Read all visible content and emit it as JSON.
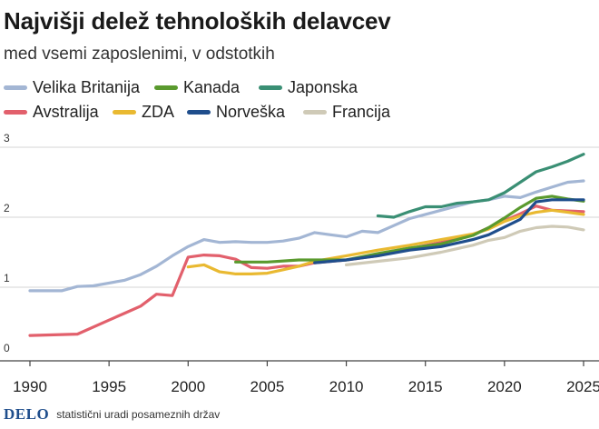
{
  "header": {
    "title": "Najvišji delež tehnoloških delavcev",
    "subtitle": "med vsemi zaposlenimi, v odstotkih"
  },
  "footer": {
    "logo": "DELO",
    "source": "statistični uradi posameznih držav"
  },
  "colors": {
    "Velika Britanija": "#a3b6d4",
    "Kanada": "#5a9a2e",
    "Japonska": "#3a8f74",
    "Avstralija": "#e2606c",
    "ZDA": "#e9b931",
    "Norveška": "#1f4e8c",
    "Francija": "#cfcab7"
  },
  "chart_data": {
    "type": "line",
    "title": "Najvišji delež tehnoloških delavcev",
    "subtitle": "med vsemi zaposlenimi, v odstotkih",
    "xlabel": "",
    "ylabel": "",
    "xlim": [
      1989,
      2025.5
    ],
    "ylim": [
      0,
      3.1
    ],
    "x_ticks": [
      1990,
      1995,
      2000,
      2005,
      2010,
      2015,
      2020,
      2025
    ],
    "y_ticks": [
      0,
      1,
      2,
      3
    ],
    "grid": "horizontal",
    "legend_position": "top",
    "series": [
      {
        "name": "Velika Britanija",
        "points": [
          [
            1990,
            0.95
          ],
          [
            1992,
            0.95
          ],
          [
            1993,
            1.01
          ],
          [
            1994,
            1.02
          ],
          [
            1995,
            1.06
          ],
          [
            1996,
            1.1
          ],
          [
            1997,
            1.18
          ],
          [
            1998,
            1.3
          ],
          [
            1999,
            1.45
          ],
          [
            2000,
            1.58
          ],
          [
            2001,
            1.68
          ],
          [
            2002,
            1.64
          ],
          [
            2003,
            1.65
          ],
          [
            2004,
            1.64
          ],
          [
            2005,
            1.64
          ],
          [
            2006,
            1.66
          ],
          [
            2007,
            1.7
          ],
          [
            2008,
            1.78
          ],
          [
            2009,
            1.75
          ],
          [
            2010,
            1.72
          ],
          [
            2011,
            1.8
          ],
          [
            2012,
            1.78
          ],
          [
            2013,
            1.88
          ],
          [
            2014,
            1.98
          ],
          [
            2015,
            2.04
          ],
          [
            2016,
            2.1
          ],
          [
            2017,
            2.16
          ],
          [
            2018,
            2.22
          ],
          [
            2019,
            2.25
          ],
          [
            2020,
            2.3
          ],
          [
            2021,
            2.28
          ],
          [
            2022,
            2.36
          ],
          [
            2023,
            2.43
          ],
          [
            2024,
            2.5
          ],
          [
            2025,
            2.52
          ]
        ]
      },
      {
        "name": "Kanada",
        "points": [
          [
            2003,
            1.36
          ],
          [
            2005,
            1.36
          ],
          [
            2007,
            1.39
          ],
          [
            2010,
            1.39
          ],
          [
            2012,
            1.48
          ],
          [
            2014,
            1.56
          ],
          [
            2016,
            1.62
          ],
          [
            2018,
            1.74
          ],
          [
            2019,
            1.85
          ],
          [
            2020,
            1.99
          ],
          [
            2021,
            2.14
          ],
          [
            2022,
            2.27
          ],
          [
            2023,
            2.3
          ],
          [
            2024,
            2.26
          ],
          [
            2025,
            2.23
          ]
        ]
      },
      {
        "name": "Japonska",
        "points": [
          [
            2012,
            2.02
          ],
          [
            2013,
            2.0
          ],
          [
            2014,
            2.08
          ],
          [
            2015,
            2.15
          ],
          [
            2016,
            2.15
          ],
          [
            2017,
            2.2
          ],
          [
            2018,
            2.22
          ],
          [
            2019,
            2.25
          ],
          [
            2020,
            2.35
          ],
          [
            2021,
            2.5
          ],
          [
            2022,
            2.65
          ],
          [
            2023,
            2.72
          ],
          [
            2024,
            2.8
          ],
          [
            2025,
            2.9
          ]
        ]
      },
      {
        "name": "Avstralija",
        "points": [
          [
            1990,
            0.31
          ],
          [
            1993,
            0.33
          ],
          [
            1995,
            0.53
          ],
          [
            1996,
            0.63
          ],
          [
            1997,
            0.73
          ],
          [
            1998,
            0.9
          ],
          [
            1999,
            0.88
          ],
          [
            2000,
            1.43
          ],
          [
            2001,
            1.46
          ],
          [
            2002,
            1.45
          ],
          [
            2003,
            1.4
          ],
          [
            2004,
            1.28
          ],
          [
            2005,
            1.27
          ],
          [
            2006,
            1.3
          ],
          [
            2007,
            1.3
          ],
          [
            2008,
            1.35
          ],
          [
            2010,
            1.39
          ],
          [
            2012,
            1.45
          ],
          [
            2014,
            1.55
          ],
          [
            2016,
            1.64
          ],
          [
            2018,
            1.75
          ],
          [
            2020,
            1.95
          ],
          [
            2021,
            2.05
          ],
          [
            2022,
            2.16
          ],
          [
            2023,
            2.1
          ],
          [
            2024,
            2.09
          ],
          [
            2025,
            2.08
          ]
        ]
      },
      {
        "name": "ZDA",
        "points": [
          [
            2000,
            1.29
          ],
          [
            2001,
            1.32
          ],
          [
            2002,
            1.22
          ],
          [
            2003,
            1.19
          ],
          [
            2004,
            1.19
          ],
          [
            2005,
            1.2
          ],
          [
            2006,
            1.25
          ],
          [
            2007,
            1.3
          ],
          [
            2008,
            1.37
          ],
          [
            2010,
            1.45
          ],
          [
            2012,
            1.53
          ],
          [
            2014,
            1.6
          ],
          [
            2016,
            1.68
          ],
          [
            2018,
            1.76
          ],
          [
            2019,
            1.83
          ],
          [
            2020,
            1.94
          ],
          [
            2021,
            2.02
          ],
          [
            2022,
            2.07
          ],
          [
            2023,
            2.1
          ],
          [
            2024,
            2.07
          ],
          [
            2025,
            2.04
          ]
        ]
      },
      {
        "name": "Norveška",
        "points": [
          [
            2008,
            1.35
          ],
          [
            2010,
            1.39
          ],
          [
            2012,
            1.45
          ],
          [
            2014,
            1.53
          ],
          [
            2016,
            1.58
          ],
          [
            2018,
            1.68
          ],
          [
            2019,
            1.75
          ],
          [
            2020,
            1.86
          ],
          [
            2021,
            1.97
          ],
          [
            2022,
            2.22
          ],
          [
            2023,
            2.25
          ],
          [
            2024,
            2.25
          ],
          [
            2025,
            2.25
          ]
        ]
      },
      {
        "name": "Francija",
        "points": [
          [
            2010,
            1.32
          ],
          [
            2012,
            1.37
          ],
          [
            2014,
            1.42
          ],
          [
            2016,
            1.5
          ],
          [
            2018,
            1.6
          ],
          [
            2019,
            1.67
          ],
          [
            2020,
            1.71
          ],
          [
            2021,
            1.8
          ],
          [
            2022,
            1.85
          ],
          [
            2023,
            1.87
          ],
          [
            2024,
            1.86
          ],
          [
            2025,
            1.82
          ]
        ]
      }
    ]
  }
}
